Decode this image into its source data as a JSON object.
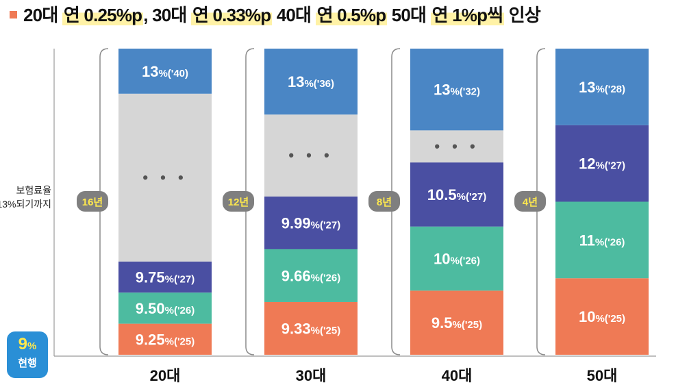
{
  "title": {
    "parts": [
      {
        "text": "20대 ",
        "highlight": false
      },
      {
        "text": "연 0.25%p",
        "highlight": true
      },
      {
        "text": ", 30대 ",
        "highlight": false
      },
      {
        "text": "연 0.33%p",
        "highlight": true
      },
      {
        "text": " 40대 ",
        "highlight": false
      },
      {
        "text": "연 0.5%p",
        "highlight": true
      },
      {
        "text": " 50대 ",
        "highlight": false
      },
      {
        "text": "연 1%p씩",
        "highlight": true
      },
      {
        "text": " 인상",
        "highlight": false
      }
    ]
  },
  "colors": {
    "y2025": "#ef7a55",
    "y2026": "#4dbba0",
    "y2027": "#4a4fa2",
    "target": "#4a86c5",
    "gap": "#d6d6d6",
    "pill": "#7f7f7f",
    "badge": "#2a8fd6"
  },
  "chart_data": {
    "type": "bar",
    "subtype": "stacked-schedule",
    "title": "20대 연 0.25%p, 30대 연 0.33%p 40대 연 0.5%p 50대 연 1%p씩 인상",
    "ylabel": "보험료율 13%되기까지",
    "baseline": {
      "value": "9%",
      "label": "현행"
    },
    "categories": [
      "20대",
      "30대",
      "40대",
      "50대"
    ],
    "annual_increase_pp": [
      0.25,
      0.33,
      0.5,
      1
    ],
    "years_to_target": [
      "16년",
      "12년",
      "8년",
      "4년"
    ],
    "series": [
      {
        "category": "20대",
        "segments": [
          {
            "rate": "9.25%",
            "year": "('25)",
            "color_key": "y2025",
            "weight": 1
          },
          {
            "rate": "9.50%",
            "year": "('26)",
            "color_key": "y2026",
            "weight": 1
          },
          {
            "rate": "9.75%",
            "year": "('27)",
            "color_key": "y2027",
            "weight": 1
          },
          {
            "gap": true,
            "label": "• • •",
            "weight": 5.4
          },
          {
            "rate": "13%",
            "year": "('40)",
            "color_key": "target",
            "weight": 1.45
          }
        ]
      },
      {
        "category": "30대",
        "segments": [
          {
            "rate": "9.33%",
            "year": "('25)",
            "color_key": "y2025",
            "weight": 1.32
          },
          {
            "rate": "9.66%",
            "year": "('26)",
            "color_key": "y2026",
            "weight": 1.32
          },
          {
            "rate": "9.99%",
            "year": "('27)",
            "color_key": "y2027",
            "weight": 1.32
          },
          {
            "gap": true,
            "label": "• • •",
            "weight": 2.05
          },
          {
            "rate": "13%",
            "year": "('36)",
            "color_key": "target",
            "weight": 1.65
          }
        ]
      },
      {
        "category": "40대",
        "segments": [
          {
            "rate": "9.5%",
            "year": "('25)",
            "color_key": "y2025",
            "weight": 2
          },
          {
            "rate": "10%",
            "year": "('26)",
            "color_key": "y2026",
            "weight": 2
          },
          {
            "rate": "10.5%",
            "year": "('27)",
            "color_key": "y2027",
            "weight": 2
          },
          {
            "gap": true,
            "label": "• • •",
            "weight": 1
          },
          {
            "rate": "13%",
            "year": "('32)",
            "color_key": "target",
            "weight": 2.55
          }
        ]
      },
      {
        "category": "50대",
        "segments": [
          {
            "rate": "10%",
            "year": "('25)",
            "color_key": "y2025",
            "weight": 1
          },
          {
            "rate": "11%",
            "year": "('26)",
            "color_key": "y2026",
            "weight": 1
          },
          {
            "rate": "12%",
            "year": "('27)",
            "color_key": "y2027",
            "weight": 1
          },
          {
            "rate": "13%",
            "year": "('28)",
            "color_key": "target",
            "weight": 1
          }
        ]
      }
    ]
  }
}
